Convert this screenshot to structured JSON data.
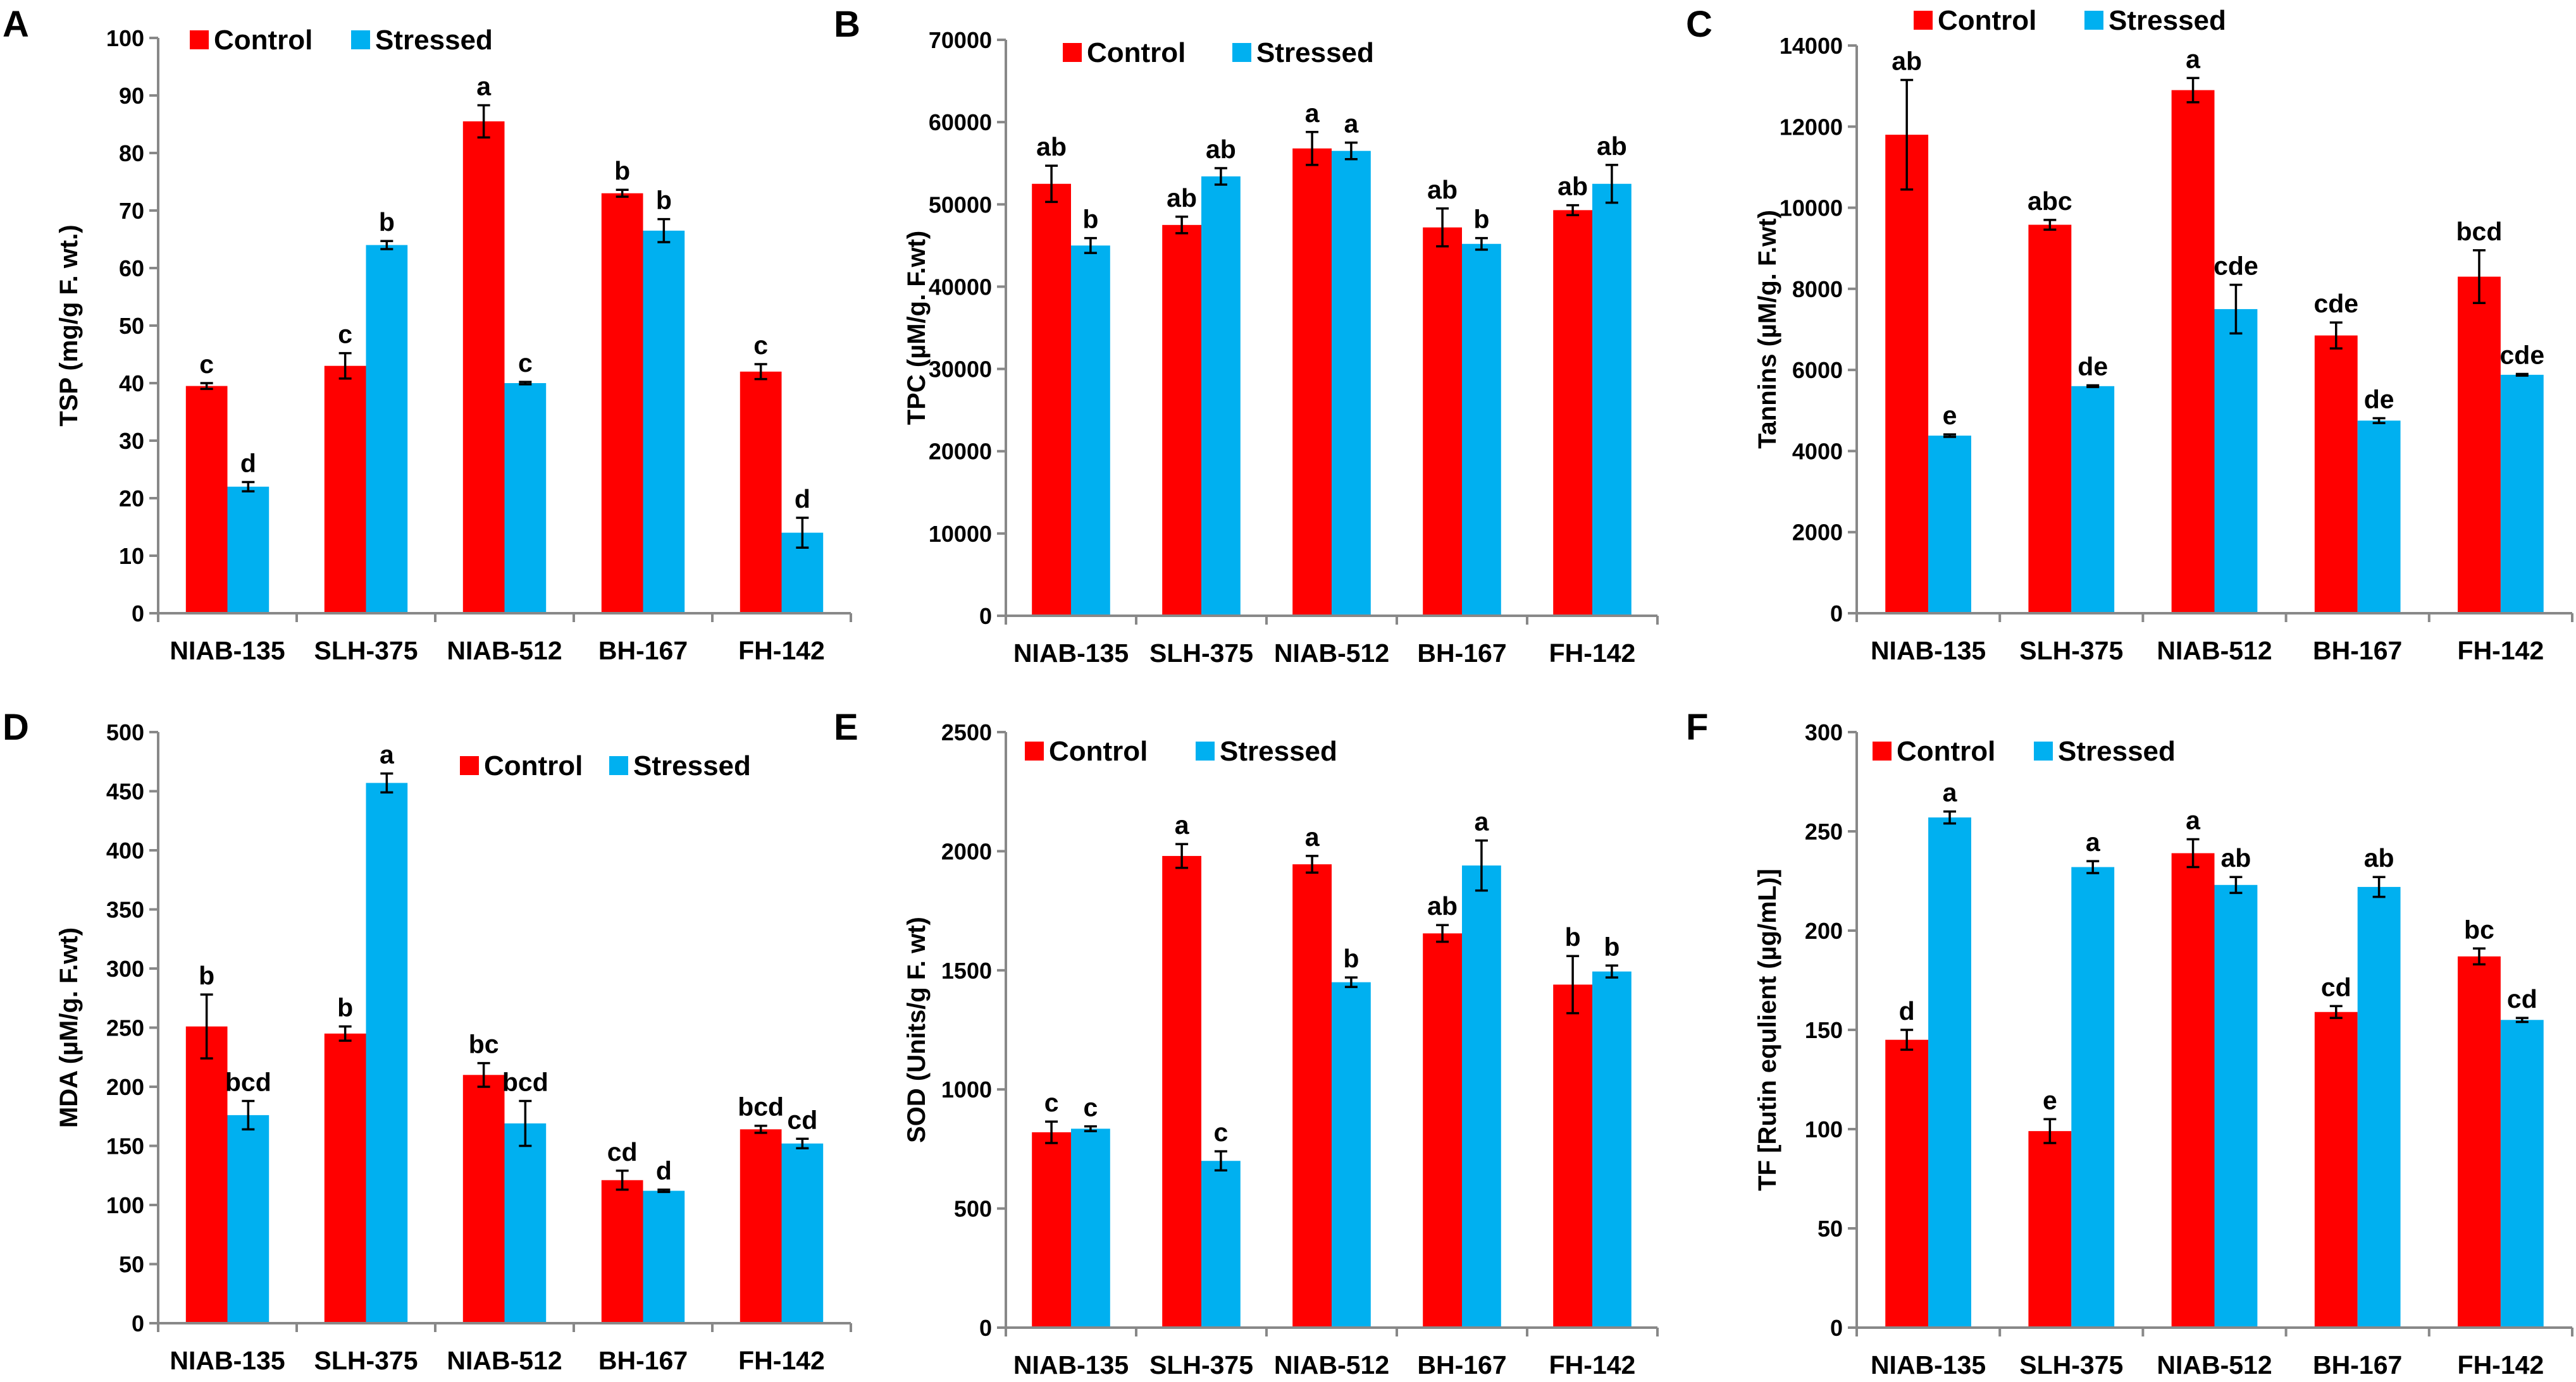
{
  "colors": {
    "control": "#ff0000",
    "stressed": "#00b0f0",
    "axis": "#888888",
    "text": "#000000"
  },
  "legend": {
    "control": "Control",
    "stressed": "Stressed"
  },
  "chart_data": [
    {
      "panel": "A",
      "type": "bar",
      "ylabel": "TSP (mg/g F. wt.)",
      "ylim": [
        0,
        100
      ],
      "yticks": [
        0,
        10,
        20,
        30,
        40,
        50,
        60,
        70,
        80,
        90,
        100
      ],
      "categories": [
        "NIAB-135",
        "SLH-375",
        "NIAB-512",
        "BH-167",
        "FH-142"
      ],
      "legend_position": "top-left",
      "series": [
        {
          "name": "Control",
          "values": [
            39.5,
            43,
            85.5,
            73,
            42
          ],
          "errors": [
            0.5,
            2.2,
            2.8,
            0.6,
            1.3
          ],
          "labels": [
            "c",
            "c",
            "a",
            "b",
            "c"
          ]
        },
        {
          "name": "Stressed",
          "values": [
            22,
            64,
            40,
            66.5,
            14
          ],
          "errors": [
            0.8,
            0.7,
            0.2,
            2.0,
            2.6
          ],
          "labels": [
            "d",
            "b",
            "c",
            "b",
            "d"
          ]
        }
      ]
    },
    {
      "panel": "B",
      "type": "bar",
      "ylabel": "TPC (µM/g. F.wt)",
      "ylim": [
        0,
        70000
      ],
      "yticks": [
        0,
        10000,
        20000,
        30000,
        40000,
        50000,
        60000,
        70000
      ],
      "categories": [
        "NIAB-135",
        "SLH-375",
        "NIAB-512",
        "BH-167",
        "FH-142"
      ],
      "legend_position": "top-left",
      "series": [
        {
          "name": "Control",
          "values": [
            52500,
            47500,
            56800,
            47200,
            49300
          ],
          "errors": [
            2200,
            1000,
            2000,
            2300,
            600
          ],
          "labels": [
            "ab",
            "ab",
            "a",
            "ab",
            "ab"
          ]
        },
        {
          "name": "Stressed",
          "values": [
            45000,
            53400,
            56500,
            45200,
            52500
          ],
          "errors": [
            900,
            1000,
            1000,
            700,
            2300
          ],
          "labels": [
            "b",
            "ab",
            "a",
            "b",
            "ab"
          ]
        }
      ]
    },
    {
      "panel": "C",
      "type": "bar",
      "ylabel": "Tannins (µM/g. F.wt)",
      "ylim": [
        0,
        14000
      ],
      "yticks": [
        0,
        2000,
        4000,
        6000,
        8000,
        10000,
        12000,
        14000
      ],
      "categories": [
        "NIAB-135",
        "SLH-375",
        "NIAB-512",
        "BH-167",
        "FH-142"
      ],
      "legend_position": "top",
      "series": [
        {
          "name": "Control",
          "values": [
            11800,
            9580,
            12900,
            6850,
            8300
          ],
          "errors": [
            1350,
            120,
            300,
            320,
            650
          ],
          "labels": [
            "ab",
            "abc",
            "a",
            "cde",
            "bcd"
          ]
        },
        {
          "name": "Stressed",
          "values": [
            4380,
            5600,
            7500,
            4750,
            5880
          ],
          "errors": [
            30,
            20,
            600,
            60,
            20
          ],
          "labels": [
            "e",
            "de",
            "cde",
            "de",
            "cde"
          ]
        }
      ]
    },
    {
      "panel": "D",
      "type": "bar",
      "ylabel": "MDA (µM/g. F.wt)",
      "ylim": [
        0,
        500
      ],
      "yticks": [
        0,
        50,
        100,
        150,
        200,
        250,
        300,
        350,
        400,
        450,
        500
      ],
      "categories": [
        "NIAB-135",
        "SLH-375",
        "NIAB-512",
        "BH-167",
        "FH-142"
      ],
      "legend_position": "top-right",
      "series": [
        {
          "name": "Control",
          "values": [
            251,
            245,
            210,
            121,
            164
          ],
          "errors": [
            27,
            6,
            10,
            8,
            3
          ],
          "labels": [
            "b",
            "b",
            "bc",
            "cd",
            "bcd"
          ]
        },
        {
          "name": "Stressed",
          "values": [
            176,
            457,
            169,
            112,
            152
          ],
          "errors": [
            12,
            8,
            19,
            1,
            4
          ],
          "labels": [
            "bcd",
            "a",
            "bcd",
            "d",
            "cd"
          ]
        }
      ]
    },
    {
      "panel": "E",
      "type": "bar",
      "ylabel": "SOD (Units/g F. wt)",
      "ylim": [
        0,
        2500
      ],
      "yticks": [
        0,
        500,
        1000,
        1500,
        2000,
        2500
      ],
      "categories": [
        "NIAB-135",
        "SLH-375",
        "NIAB-512",
        "BH-167",
        "FH-142"
      ],
      "legend_position": "top-left",
      "series": [
        {
          "name": "Control",
          "values": [
            820,
            1980,
            1945,
            1655,
            1440
          ],
          "errors": [
            45,
            50,
            35,
            35,
            120
          ],
          "labels": [
            "c",
            "a",
            "a",
            "ab",
            "b"
          ]
        },
        {
          "name": "Stressed",
          "values": [
            835,
            700,
            1450,
            1940,
            1495
          ],
          "errors": [
            10,
            40,
            20,
            105,
            25
          ],
          "labels": [
            "c",
            "c",
            "b",
            "a",
            "b"
          ]
        }
      ]
    },
    {
      "panel": "F",
      "type": "bar",
      "ylabel": "TF [Rutin equlient (µg/mL)]",
      "ylim": [
        0,
        300
      ],
      "yticks": [
        0,
        50,
        100,
        150,
        200,
        250,
        300
      ],
      "categories": [
        "NIAB-135",
        "SLH-375",
        "NIAB-512",
        "BH-167",
        "FH-142"
      ],
      "legend_position": "top-left",
      "series": [
        {
          "name": "Control",
          "values": [
            145,
            99,
            239,
            159,
            187
          ],
          "errors": [
            5,
            6,
            7,
            3,
            4
          ],
          "labels": [
            "d",
            "e",
            "a",
            "cd",
            "bc"
          ]
        },
        {
          "name": "Stressed",
          "values": [
            257,
            232,
            223,
            222,
            155
          ],
          "errors": [
            3,
            3,
            4,
            5,
            1
          ],
          "labels": [
            "a",
            "a",
            "ab",
            "ab",
            "cd"
          ]
        }
      ]
    }
  ]
}
